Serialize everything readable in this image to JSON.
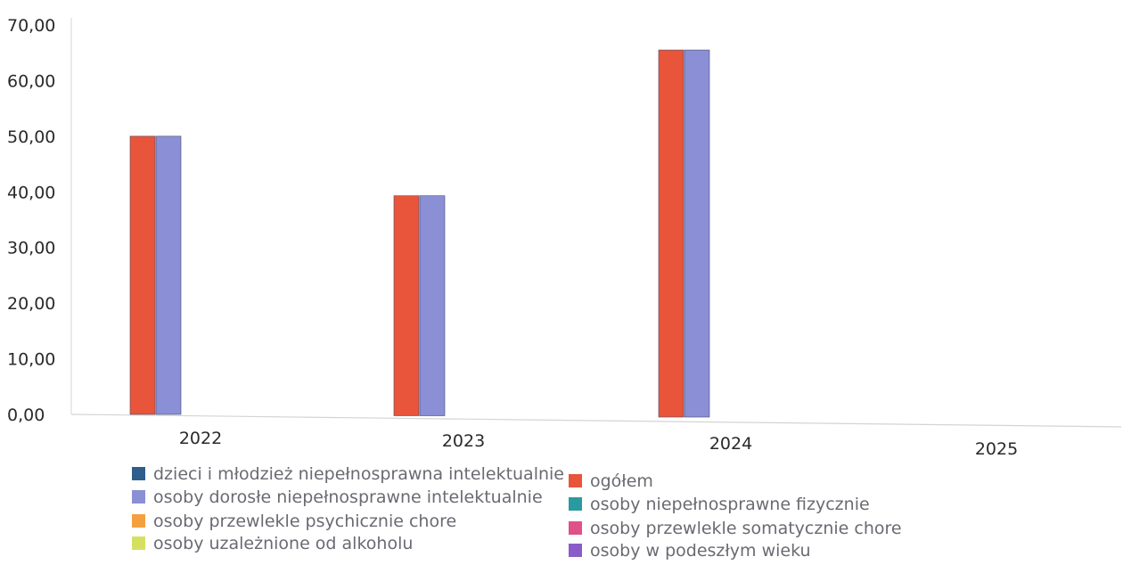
{
  "chart_data": {
    "type": "bar",
    "categories": [
      "2022",
      "2023",
      "2024",
      "2025"
    ],
    "ylim": [
      0,
      70
    ],
    "yticks": [
      "0,00",
      "10,00",
      "20,00",
      "30,00",
      "40,00",
      "50,00",
      "60,00",
      "70,00"
    ],
    "grid": false,
    "legend_position": "bottom",
    "series": [
      {
        "name": "dzieci i młodzież niepełnosprawna intelektualnie",
        "color": "#2e5f8a",
        "values": [
          0,
          0,
          0,
          0
        ]
      },
      {
        "name": "ogółem",
        "color": "#e8553a",
        "values": [
          50,
          39.3,
          65.5,
          0
        ]
      },
      {
        "name": "osoby dorosłe niepełnosprawne intelektualnie",
        "color": "#8a8fd6",
        "values": [
          50,
          39.3,
          65.5,
          0
        ]
      },
      {
        "name": "osoby niepełnosprawne fizycznie",
        "color": "#2a9aa0",
        "values": [
          0,
          0,
          0,
          0
        ]
      },
      {
        "name": "osoby przewlekle psychicznie chore",
        "color": "#f5a040",
        "values": [
          0,
          0,
          0,
          0
        ]
      },
      {
        "name": "osoby przewlekle somatycznie chore",
        "color": "#e0508a",
        "values": [
          0,
          0,
          0,
          0
        ]
      },
      {
        "name": "osoby uzależnione od alkoholu",
        "color": "#d6e060",
        "values": [
          0,
          0,
          0,
          0
        ]
      },
      {
        "name": "osoby w podeszłym wieku",
        "color": "#8a5cc8",
        "values": [
          0,
          0,
          0,
          0
        ]
      }
    ]
  }
}
